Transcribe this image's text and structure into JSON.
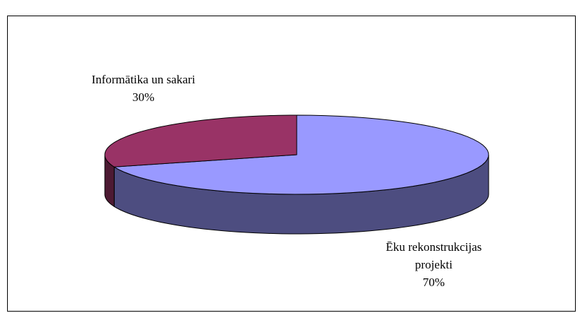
{
  "chart_data": {
    "type": "pie3d",
    "categories": [
      "Ēku rekonstrukcijas projekti",
      "Informātika un sakari"
    ],
    "values": [
      70,
      30
    ],
    "value_labels": [
      "70%",
      "30%"
    ],
    "colors": [
      "#9999ff",
      "#993366"
    ],
    "side_colors": [
      "#4d4d80",
      "#4d1a33"
    ]
  }
}
